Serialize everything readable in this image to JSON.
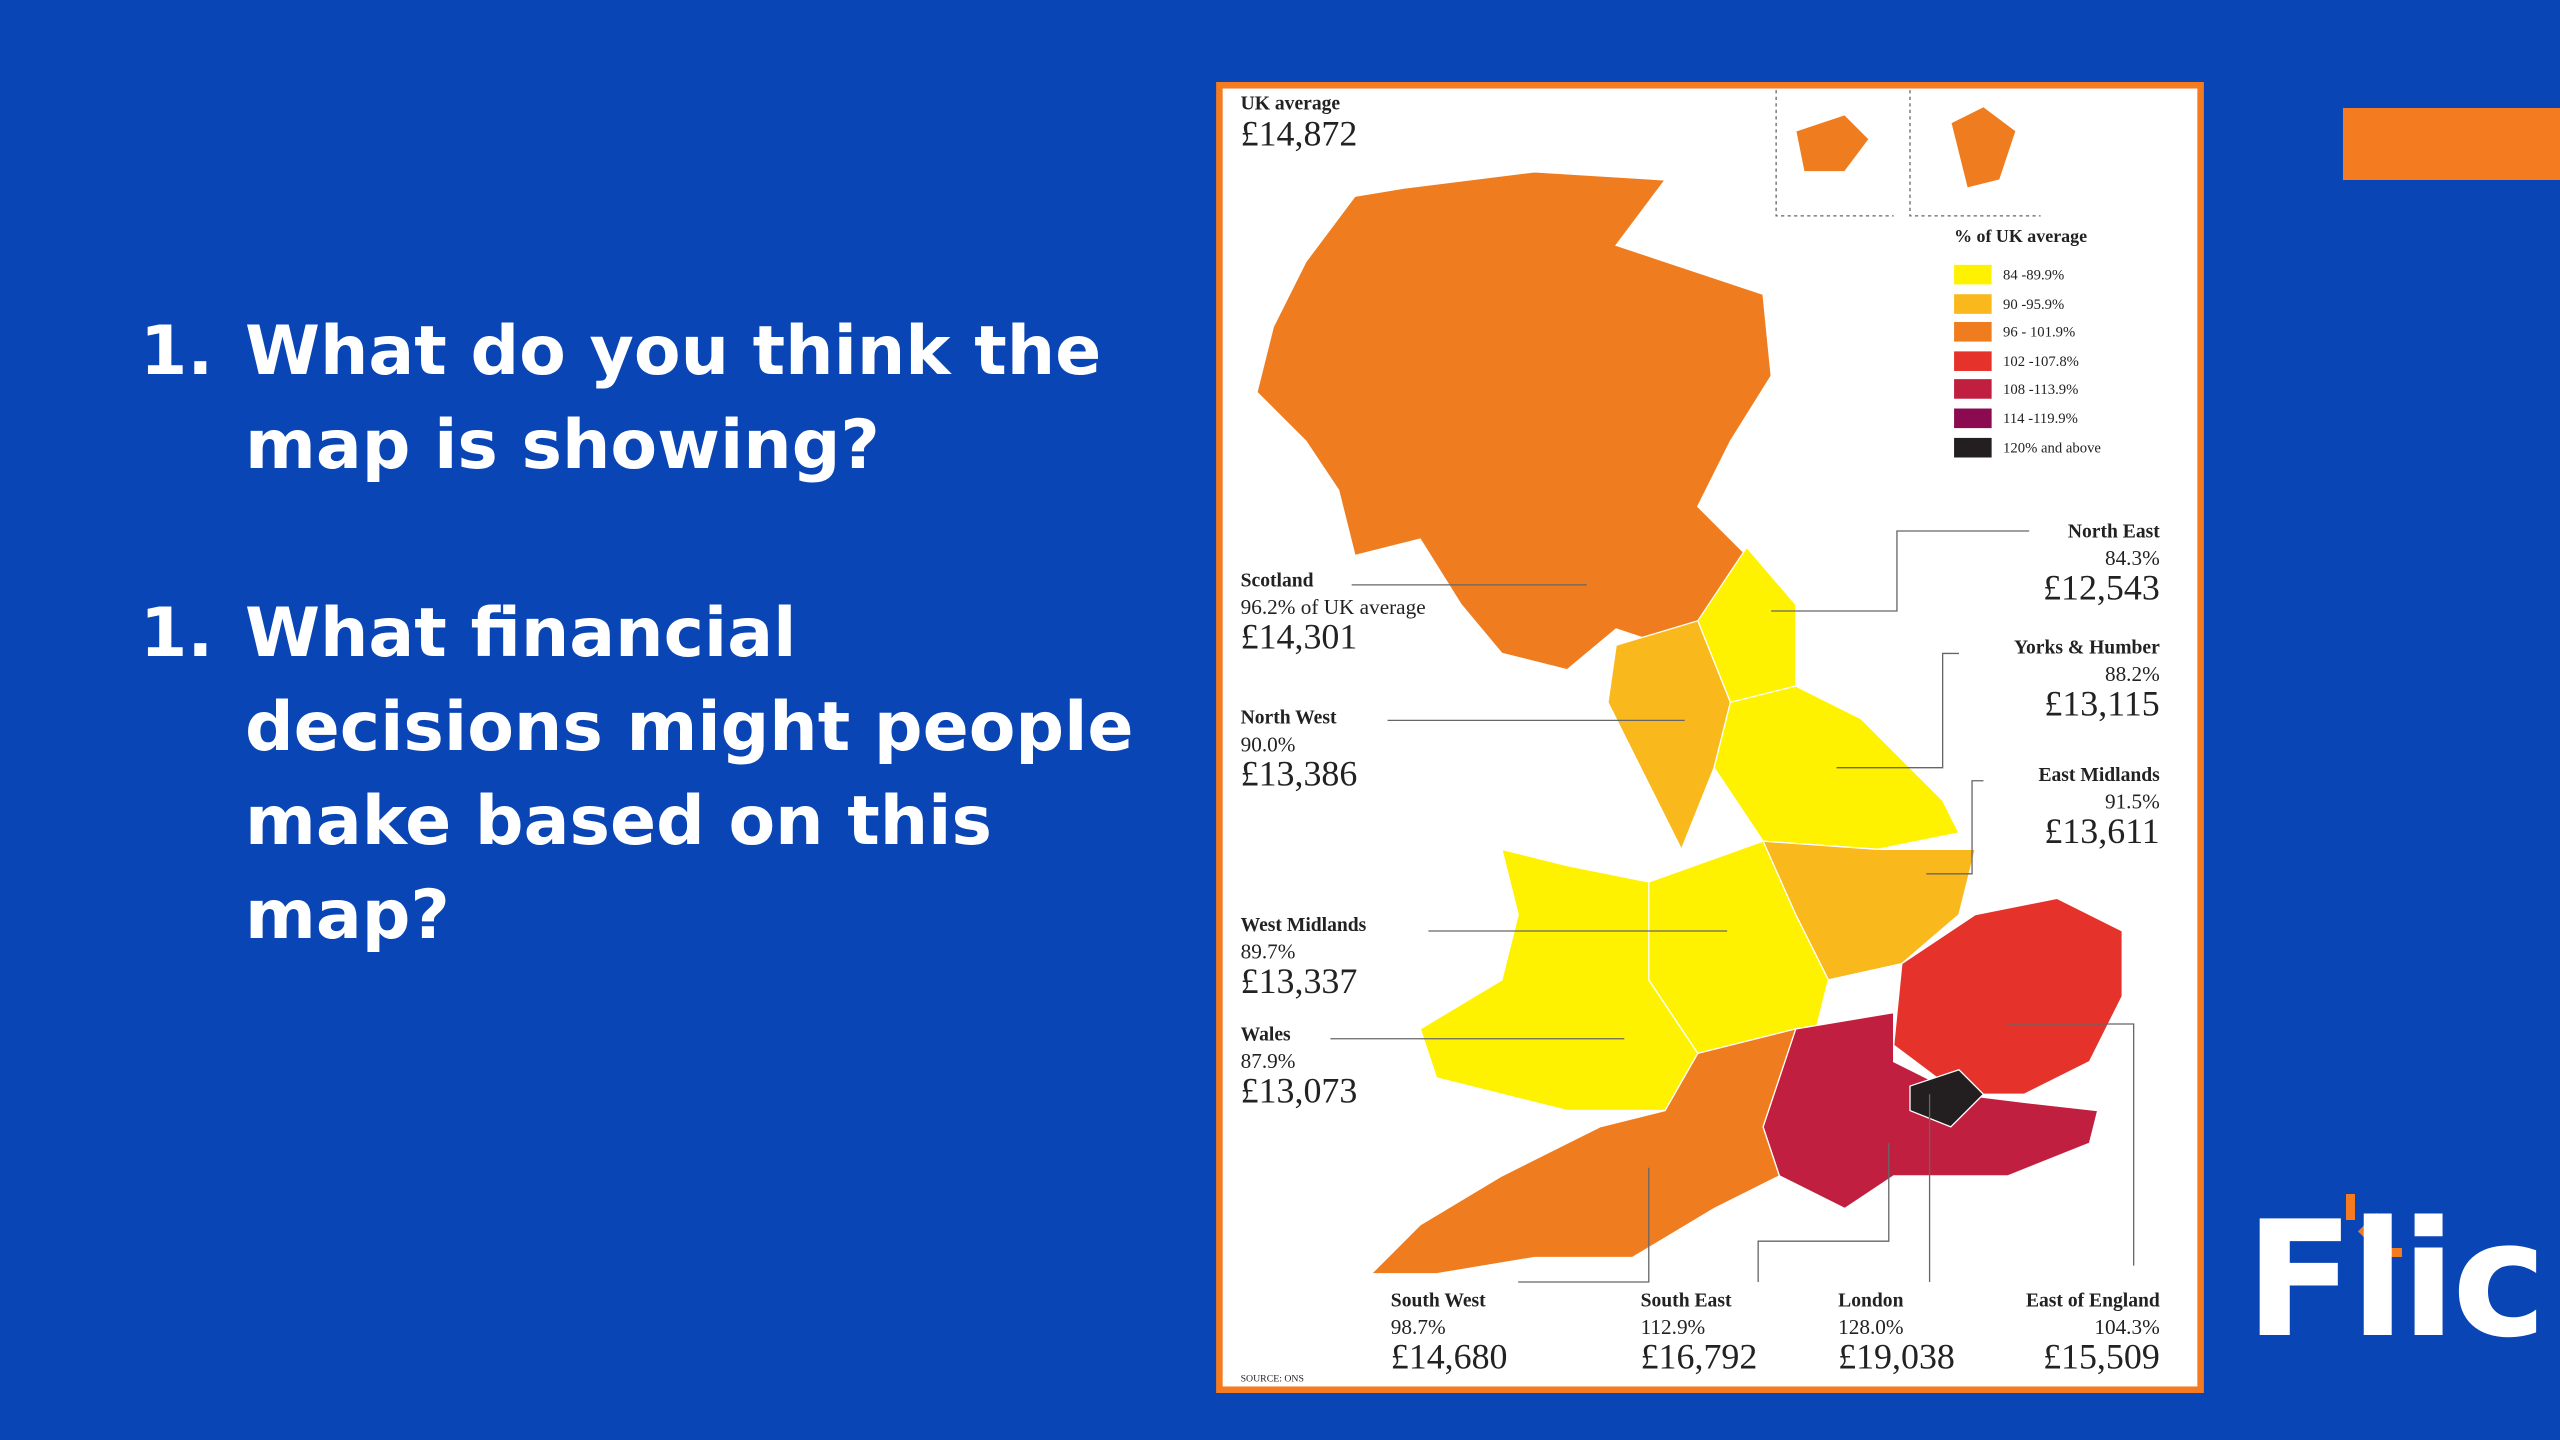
{
  "questions": [
    {
      "number": "1.",
      "text": "What do you think the map is showing?"
    },
    {
      "number": "1.",
      "text": "What financial decisions might people make based on this map?"
    }
  ],
  "map": {
    "uk_average": {
      "label": "UK average",
      "value": "£14,872"
    },
    "legend": {
      "title": "% of UK average",
      "items": [
        {
          "label": "84 -89.9%",
          "color": "#fff200"
        },
        {
          "label": "90 -95.9%",
          "color": "#f9b81b"
        },
        {
          "label": "96 - 101.9%",
          "color": "#ef7d1f"
        },
        {
          "label": "102 -107.8%",
          "color": "#e5322b"
        },
        {
          "label": "108 -113.9%",
          "color": "#c01f3f"
        },
        {
          "label": "114 -119.9%",
          "color": "#8c0b50"
        },
        {
          "label": "120% and above",
          "color": "#231f20"
        }
      ]
    },
    "regions": [
      {
        "name": "Scotland",
        "percent": "96.2% of UK average",
        "value": "£14,301"
      },
      {
        "name": "North West",
        "percent": "90.0%",
        "value": "£13,386"
      },
      {
        "name": "West Midlands",
        "percent": "89.7%",
        "value": "£13,337"
      },
      {
        "name": "Wales",
        "percent": "87.9%",
        "value": "£13,073"
      },
      {
        "name": "North East",
        "percent": "84.3%",
        "value": "£12,543"
      },
      {
        "name": "Yorks & Humber",
        "percent": "88.2%",
        "value": "£13,115"
      },
      {
        "name": "East Midlands",
        "percent": "91.5%",
        "value": "£13,611"
      },
      {
        "name": "South West",
        "percent": "98.7%",
        "value": "£14,680"
      },
      {
        "name": "South East",
        "percent": "112.9%",
        "value": "£16,792"
      },
      {
        "name": "London",
        "percent": "128.0%",
        "value": "£19,038"
      },
      {
        "name": "East of England",
        "percent": "104.3%",
        "value": "£15,509"
      }
    ],
    "source": "SOURCE: ONS"
  },
  "logo": "Flic"
}
